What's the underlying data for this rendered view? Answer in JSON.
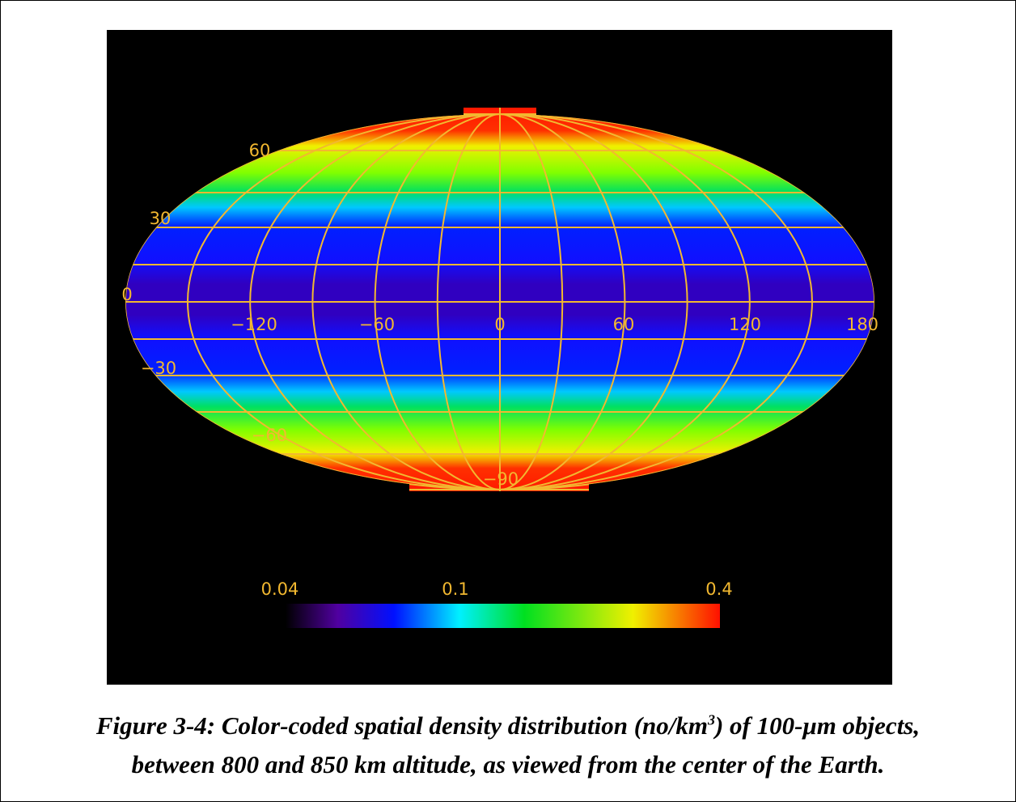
{
  "figure": {
    "latitude_labels": [
      "60",
      "30",
      "0",
      "−30",
      "−60",
      "−90"
    ],
    "longitude_labels": [
      "−120",
      "−60",
      "0",
      "60",
      "120",
      "180"
    ],
    "colorbar_labels": [
      "0.04",
      "0.1",
      "0.4"
    ]
  },
  "caption": {
    "line1_start": "Figure 3-4:  Color-coded spatial density distribution (no/km",
    "line1_sup": "3",
    "line1_end": ") of 100-μm objects,",
    "line2": "between 800 and 850 km altitude, as viewed from the center of the Earth."
  }
}
